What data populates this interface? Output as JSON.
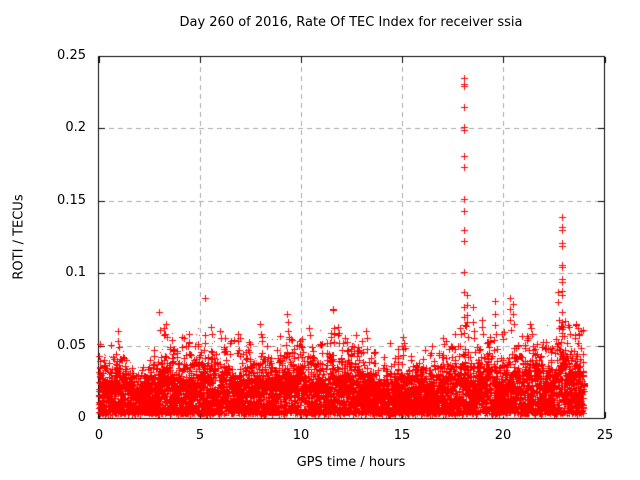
{
  "chart_data": {
    "type": "scatter",
    "title": "Day 260 of 2016, Rate Of TEC Index for receiver ssia",
    "xlabel": "GPS time / hours",
    "ylabel": "ROTI / TECUs",
    "xlim": [
      0,
      25
    ],
    "ylim": [
      0,
      0.25
    ],
    "xticks": {
      "values": [
        0,
        5,
        10,
        15,
        20,
        25
      ],
      "labels": [
        "0",
        "5",
        "10",
        "15",
        "20",
        "25"
      ]
    },
    "yticks": {
      "values": [
        0,
        0.05,
        0.1,
        0.15,
        0.2,
        0.25
      ],
      "labels": [
        "0",
        "0.05",
        "0.1",
        "0.15",
        "0.2",
        "0.25"
      ]
    },
    "grid": true,
    "grid_color": "#a9a9a9",
    "axis_color": "#000000",
    "background": "#ffffff",
    "marker": "plus",
    "marker_color": "#ff0000",
    "data_span_hours": [
      0,
      24
    ],
    "peaks": [
      [
        0.95,
        0.06
      ],
      [
        0.97,
        0.053
      ],
      [
        1.0,
        0.049
      ],
      [
        2.97,
        0.073
      ],
      [
        3.25,
        0.062
      ],
      [
        3.3,
        0.058
      ],
      [
        3.35,
        0.065
      ],
      [
        3.4,
        0.056
      ],
      [
        4.2,
        0.055
      ],
      [
        5.24,
        0.083
      ],
      [
        5.26,
        0.057
      ],
      [
        5.28,
        0.052
      ],
      [
        5.55,
        0.063
      ],
      [
        5.6,
        0.058
      ],
      [
        6.0,
        0.06
      ],
      [
        6.05,
        0.055
      ],
      [
        6.9,
        0.058
      ],
      [
        7.0,
        0.055
      ],
      [
        8.0,
        0.065
      ],
      [
        8.05,
        0.058
      ],
      [
        9.33,
        0.072
      ],
      [
        9.35,
        0.066
      ],
      [
        9.36,
        0.06
      ],
      [
        9.4,
        0.056
      ],
      [
        10.4,
        0.062
      ],
      [
        10.45,
        0.057
      ],
      [
        11.58,
        0.0755
      ],
      [
        11.61,
        0.0745
      ],
      [
        11.62,
        0.062
      ],
      [
        11.65,
        0.058
      ],
      [
        11.81,
        0.063
      ],
      [
        11.85,
        0.057
      ],
      [
        12.2,
        0.055
      ],
      [
        12.7,
        0.057
      ],
      [
        13.0,
        0.053
      ],
      [
        13.2,
        0.06
      ],
      [
        13.25,
        0.055
      ],
      [
        14.4,
        0.052
      ],
      [
        15.05,
        0.056
      ],
      [
        15.1,
        0.052
      ],
      [
        16.5,
        0.05
      ],
      [
        17.0,
        0.055
      ],
      [
        17.05,
        0.051
      ],
      [
        17.6,
        0.058
      ],
      [
        17.85,
        0.062
      ],
      [
        17.9,
        0.058
      ],
      [
        18.04,
        0.235
      ],
      [
        18.05,
        0.231
      ],
      [
        18.06,
        0.229
      ],
      [
        18.04,
        0.215
      ],
      [
        18.04,
        0.201
      ],
      [
        18.06,
        0.199
      ],
      [
        18.05,
        0.181
      ],
      [
        18.04,
        0.173
      ],
      [
        18.04,
        0.151
      ],
      [
        18.06,
        0.143
      ],
      [
        18.04,
        0.13
      ],
      [
        18.05,
        0.122
      ],
      [
        18.04,
        0.101
      ],
      [
        18.06,
        0.087
      ],
      [
        18.04,
        0.077
      ],
      [
        18.05,
        0.07
      ],
      [
        18.09,
        0.064
      ],
      [
        18.04,
        0.059
      ],
      [
        18.2,
        0.085
      ],
      [
        18.21,
        0.078
      ],
      [
        18.22,
        0.071
      ],
      [
        18.23,
        0.066
      ],
      [
        18.52,
        0.077
      ],
      [
        18.52,
        0.066
      ],
      [
        18.54,
        0.06
      ],
      [
        18.57,
        0.055
      ],
      [
        18.94,
        0.068
      ],
      [
        18.96,
        0.063
      ],
      [
        18.99,
        0.058
      ],
      [
        19.58,
        0.081
      ],
      [
        19.58,
        0.072
      ],
      [
        19.6,
        0.064
      ],
      [
        19.63,
        0.058
      ],
      [
        20.32,
        0.083
      ],
      [
        20.32,
        0.075
      ],
      [
        20.34,
        0.068
      ],
      [
        20.37,
        0.061
      ],
      [
        20.47,
        0.079
      ],
      [
        20.49,
        0.072
      ],
      [
        20.52,
        0.065
      ],
      [
        21.3,
        0.065
      ],
      [
        21.35,
        0.062
      ],
      [
        21.4,
        0.058
      ],
      [
        22.72,
        0.087
      ],
      [
        22.72,
        0.08
      ],
      [
        22.74,
        0.068
      ],
      [
        22.77,
        0.062
      ],
      [
        22.88,
        0.139
      ],
      [
        22.88,
        0.132
      ],
      [
        22.9,
        0.13
      ],
      [
        22.88,
        0.121
      ],
      [
        22.9,
        0.119
      ],
      [
        22.88,
        0.106
      ],
      [
        22.9,
        0.104
      ],
      [
        22.88,
        0.096
      ],
      [
        22.9,
        0.094
      ],
      [
        22.88,
        0.088
      ],
      [
        22.89,
        0.085
      ],
      [
        22.9,
        0.073
      ],
      [
        22.88,
        0.066
      ],
      [
        22.93,
        0.063
      ],
      [
        22.88,
        0.059
      ],
      [
        23.2,
        0.064
      ],
      [
        23.25,
        0.063
      ],
      [
        23.3,
        0.058
      ],
      [
        23.6,
        0.065
      ],
      [
        23.7,
        0.062
      ],
      [
        23.75,
        0.058
      ],
      [
        23.85,
        0.06
      ]
    ],
    "band": {
      "floor": 0.003,
      "envelope_step": 0.5,
      "envelope": [
        0.045,
        0.04,
        0.048,
        0.036,
        0.033,
        0.038,
        0.052,
        0.05,
        0.044,
        0.048,
        0.052,
        0.047,
        0.049,
        0.043,
        0.048,
        0.047,
        0.049,
        0.043,
        0.05,
        0.047,
        0.049,
        0.041,
        0.048,
        0.053,
        0.047,
        0.049,
        0.045,
        0.043,
        0.039,
        0.037,
        0.041,
        0.039,
        0.041,
        0.04,
        0.044,
        0.049,
        0.056,
        0.046,
        0.049,
        0.049,
        0.051,
        0.047,
        0.054,
        0.051,
        0.049,
        0.053,
        0.056,
        0.053,
        0.05
      ],
      "bins": 480,
      "points_per_bin": 12,
      "dots_per_bin": 4,
      "seed": 2016260
    }
  }
}
